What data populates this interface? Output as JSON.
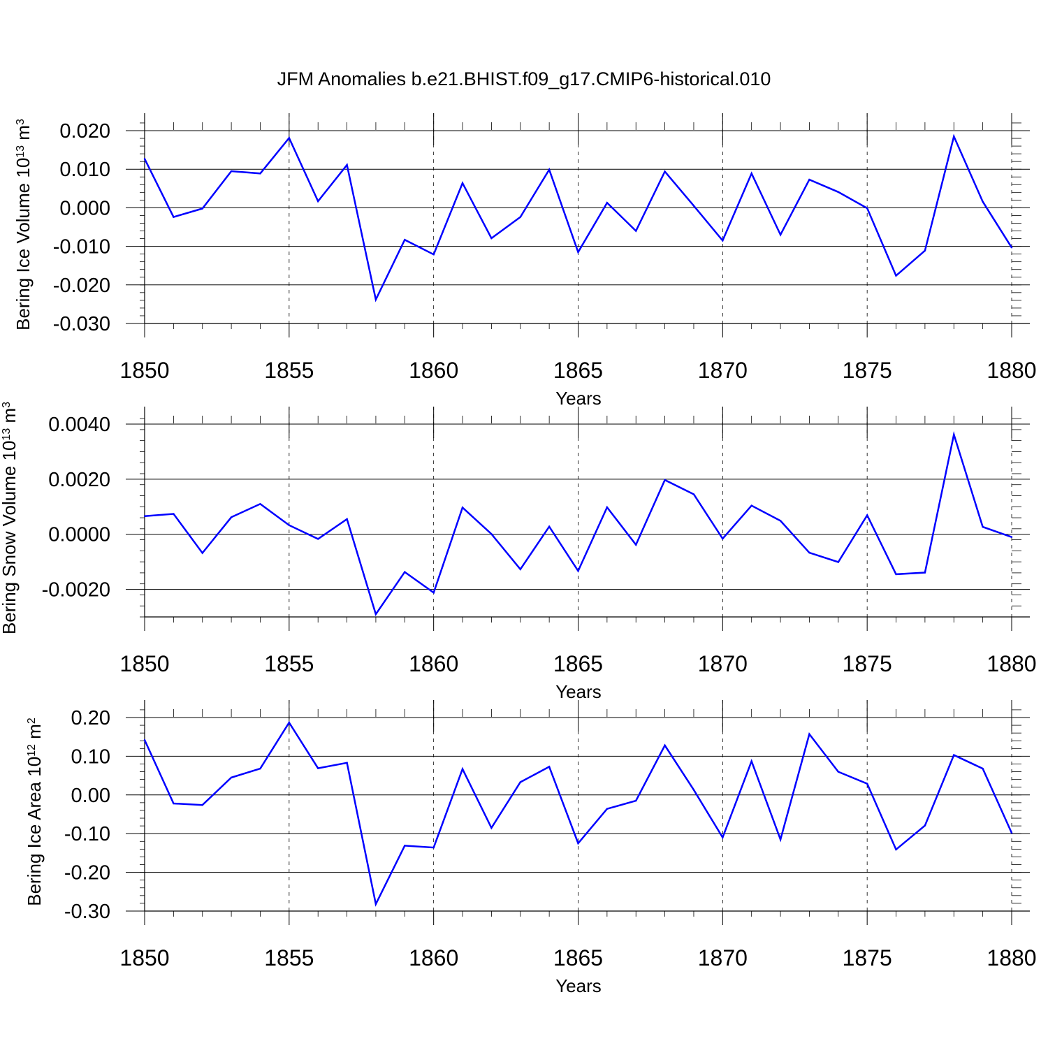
{
  "chart_data": {
    "title": "JFM Anomalies b.e21.BHIST.f09_g17.CMIP6-historical.010",
    "line_color": "#0000ff",
    "panels": [
      {
        "type": "line",
        "ylabel_prefix": "Bering Ice Volume 10",
        "ylabel_exp": "13",
        "ylabel_unit": " m",
        "ylabel_unit_exp": "3",
        "xlabel": "Years",
        "xlim": [
          1850,
          1880
        ],
        "ylim": [
          -0.03,
          0.0245
        ],
        "yticks": [
          -0.03,
          -0.02,
          -0.01,
          0.0,
          0.01,
          0.02
        ],
        "ytick_labels": [
          "-0.030",
          "-0.020",
          "-0.010",
          "0.000",
          "0.010",
          "0.020"
        ],
        "xticks": [
          1850,
          1855,
          1860,
          1865,
          1870,
          1875,
          1880
        ],
        "xtick_labels": [
          "1850",
          "1855",
          "1860",
          "1865",
          "1870",
          "1875",
          "1880"
        ],
        "x": [
          1850,
          1851,
          1852,
          1853,
          1854,
          1855,
          1856,
          1857,
          1858,
          1859,
          1860,
          1861,
          1862,
          1863,
          1864,
          1865,
          1866,
          1867,
          1868,
          1869,
          1870,
          1871,
          1872,
          1873,
          1874,
          1875,
          1876,
          1877,
          1878,
          1879,
          1880
        ],
        "values": [
          0.0127,
          -0.0024,
          -0.0002,
          0.0095,
          0.0089,
          0.0181,
          0.0017,
          0.0111,
          -0.0238,
          -0.0083,
          -0.0121,
          0.0064,
          -0.0079,
          -0.0024,
          0.0099,
          -0.0115,
          0.0013,
          -0.006,
          0.0094,
          0.0005,
          -0.0085,
          0.0089,
          -0.007,
          0.0073,
          0.0041,
          -0.0001,
          -0.0176,
          -0.0111,
          0.0185,
          0.0016,
          -0.0103
        ]
      },
      {
        "type": "line",
        "ylabel_prefix": "Bering Snow Volume 10",
        "ylabel_exp": "13",
        "ylabel_unit": " m",
        "ylabel_unit_exp": "3",
        "xlabel": "Years",
        "xlim": [
          1850,
          1880
        ],
        "ylim": [
          -0.003,
          0.0045
        ],
        "yticks": [
          -0.002,
          0.0,
          0.002,
          0.004
        ],
        "ytick_labels": [
          "-0.0020",
          "0.0000",
          "0.0020",
          "0.0040"
        ],
        "xticks": [
          1850,
          1855,
          1860,
          1865,
          1870,
          1875,
          1880
        ],
        "xtick_labels": [
          "1850",
          "1855",
          "1860",
          "1865",
          "1870",
          "1875",
          "1880"
        ],
        "x": [
          1850,
          1851,
          1852,
          1853,
          1854,
          1855,
          1856,
          1857,
          1858,
          1859,
          1860,
          1861,
          1862,
          1863,
          1864,
          1865,
          1866,
          1867,
          1868,
          1869,
          1870,
          1871,
          1872,
          1873,
          1874,
          1875,
          1876,
          1877,
          1878,
          1879,
          1880
        ],
        "values": [
          0.00066,
          0.00074,
          -0.00068,
          0.00062,
          0.0011,
          0.00033,
          -0.00017,
          0.00055,
          -0.0029,
          -0.00137,
          -0.00212,
          0.00097,
          1e-05,
          -0.00127,
          0.00028,
          -0.00133,
          0.00098,
          -0.00038,
          0.00197,
          0.00145,
          -0.00016,
          0.00104,
          0.00049,
          -0.00067,
          -0.00101,
          0.00069,
          -0.00145,
          -0.00139,
          0.00362,
          0.00027,
          -0.0001
        ]
      },
      {
        "type": "line",
        "ylabel_prefix": "Bering Ice Area 10",
        "ylabel_exp": "12",
        "ylabel_unit": " m",
        "ylabel_unit_exp": "2",
        "xlabel": "Years",
        "xlim": [
          1850,
          1880
        ],
        "ylim": [
          -0.3,
          0.245
        ],
        "yticks": [
          -0.3,
          -0.2,
          -0.1,
          0.0,
          0.1,
          0.2
        ],
        "ytick_labels": [
          "-0.30",
          "-0.20",
          "-0.10",
          "0.00",
          "0.10",
          "0.20"
        ],
        "xticks": [
          1850,
          1855,
          1860,
          1865,
          1870,
          1875,
          1880
        ],
        "xtick_labels": [
          "1850",
          "1855",
          "1860",
          "1865",
          "1870",
          "1875",
          "1880"
        ],
        "x": [
          1850,
          1851,
          1852,
          1853,
          1854,
          1855,
          1856,
          1857,
          1858,
          1859,
          1860,
          1861,
          1862,
          1863,
          1864,
          1865,
          1866,
          1867,
          1868,
          1869,
          1870,
          1871,
          1872,
          1873,
          1874,
          1875,
          1876,
          1877,
          1878,
          1879,
          1880
        ],
        "values": [
          0.142,
          -0.022,
          -0.026,
          0.045,
          0.068,
          0.187,
          0.069,
          0.083,
          -0.282,
          -0.131,
          -0.136,
          0.067,
          -0.085,
          0.033,
          0.073,
          -0.125,
          -0.036,
          -0.015,
          0.128,
          0.013,
          -0.11,
          0.087,
          -0.115,
          0.157,
          0.06,
          0.029,
          -0.141,
          -0.079,
          0.103,
          0.068,
          -0.098
        ]
      }
    ]
  }
}
